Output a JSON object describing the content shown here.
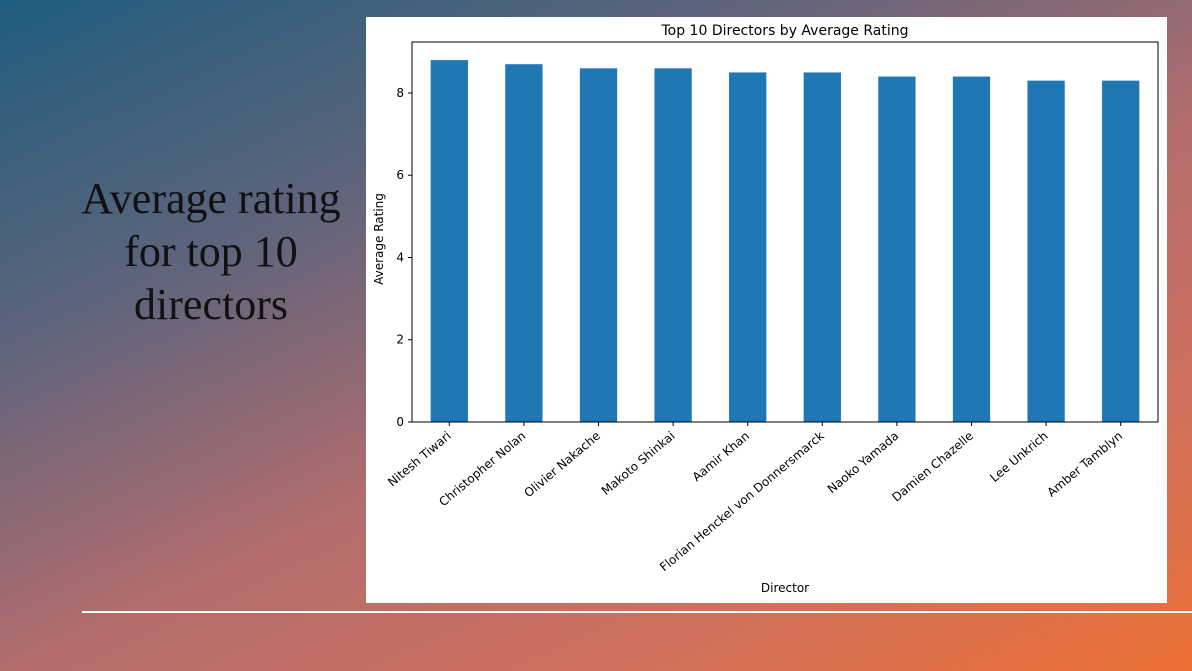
{
  "slide": {
    "title": "Average rating for top 10 directors"
  },
  "colors": {
    "bar": "#1f77b4"
  },
  "chart_data": {
    "type": "bar",
    "title": "Top 10 Directors by Average Rating",
    "xlabel": "Director",
    "ylabel": "Average Rating",
    "categories": [
      "Nitesh Tiwari",
      "Christopher Nolan",
      "Olivier Nakache",
      "Makoto Shinkai",
      "Aamir Khan",
      "Florian Henckel von Donnersmarck",
      "Naoko Yamada",
      "Damien Chazelle",
      "Lee Unkrich",
      "Amber Tamblyn"
    ],
    "values": [
      8.8,
      8.7,
      8.6,
      8.6,
      8.5,
      8.5,
      8.4,
      8.4,
      8.3,
      8.3
    ],
    "ylim": [
      0,
      9.24
    ],
    "yticks": [
      0,
      2,
      4,
      6,
      8
    ],
    "grid": false,
    "legend": "none"
  }
}
